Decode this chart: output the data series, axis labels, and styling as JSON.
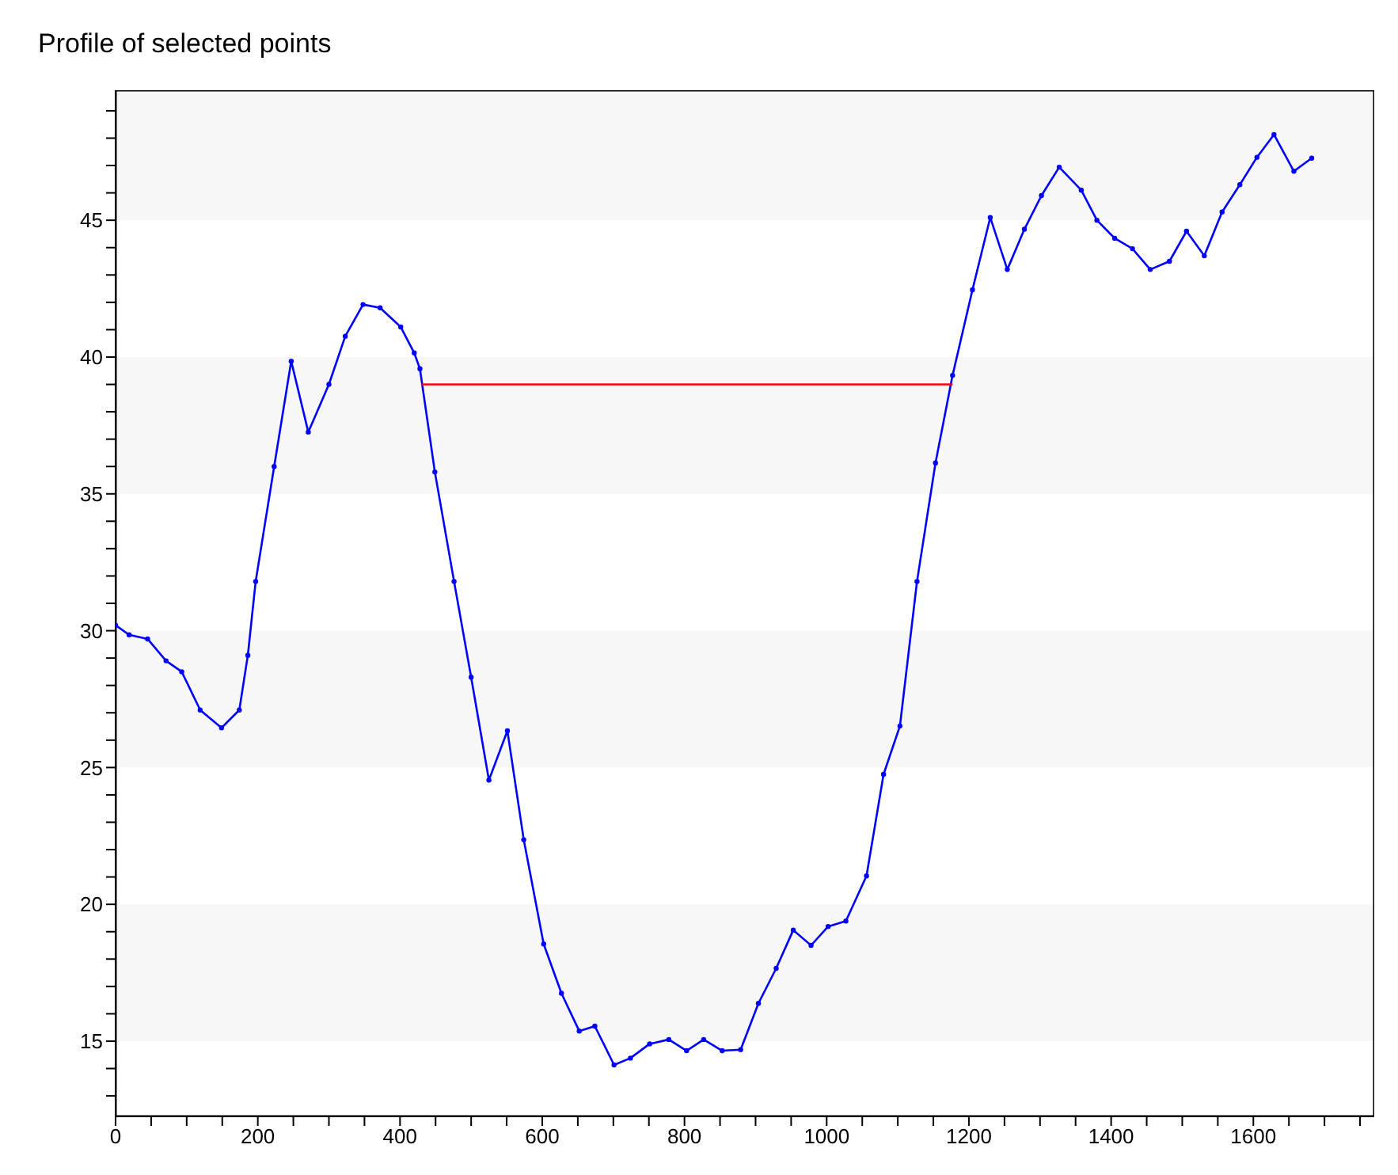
{
  "chart_data": {
    "type": "line",
    "title": "Profile of selected points",
    "xlim": [
      0,
      1770
    ],
    "ylim": [
      12.25,
      49.75
    ],
    "xticks": [
      0,
      {
        "value": 50,
        "label": null
      },
      {
        "value": 100,
        "label": null
      },
      {
        "value": 150,
        "label": null
      },
      200,
      {
        "value": 250,
        "label": null
      },
      {
        "value": 300,
        "label": null
      },
      {
        "value": 350,
        "label": null
      },
      400,
      {
        "value": 450,
        "label": null
      },
      {
        "value": 500,
        "label": null
      },
      {
        "value": 550,
        "label": null
      },
      600,
      {
        "value": 650,
        "label": null
      },
      {
        "value": 700,
        "label": null
      },
      {
        "value": 750,
        "label": null
      },
      800,
      {
        "value": 850,
        "label": null
      },
      {
        "value": 900,
        "label": null
      },
      {
        "value": 950,
        "label": null
      },
      1000,
      {
        "value": 1050,
        "label": null
      },
      {
        "value": 1100,
        "label": null
      },
      {
        "value": 1150,
        "label": null
      },
      1200,
      {
        "value": 1250,
        "label": null
      },
      {
        "value": 1300,
        "label": null
      },
      {
        "value": 1350,
        "label": null
      },
      1400,
      {
        "value": 1450,
        "label": null
      },
      {
        "value": 1500,
        "label": null
      },
      {
        "value": 1550,
        "label": null
      },
      1600,
      {
        "value": 1650,
        "label": null
      },
      {
        "value": 1700,
        "label": null
      },
      {
        "value": 1750,
        "label": null
      }
    ],
    "yticks": [
      {
        "value": 13,
        "label": null
      },
      {
        "value": 14,
        "label": null
      },
      15,
      {
        "value": 16,
        "label": null
      },
      {
        "value": 17,
        "label": null
      },
      {
        "value": 18,
        "label": null
      },
      {
        "value": 19,
        "label": null
      },
      20,
      {
        "value": 21,
        "label": null
      },
      {
        "value": 22,
        "label": null
      },
      {
        "value": 23,
        "label": null
      },
      {
        "value": 24,
        "label": null
      },
      25,
      {
        "value": 26,
        "label": null
      },
      {
        "value": 27,
        "label": null
      },
      {
        "value": 28,
        "label": null
      },
      {
        "value": 29,
        "label": null
      },
      30,
      {
        "value": 31,
        "label": null
      },
      {
        "value": 32,
        "label": null
      },
      {
        "value": 33,
        "label": null
      },
      {
        "value": 34,
        "label": null
      },
      35,
      {
        "value": 36,
        "label": null
      },
      {
        "value": 37,
        "label": null
      },
      {
        "value": 38,
        "label": null
      },
      {
        "value": 39,
        "label": null
      },
      40,
      {
        "value": 41,
        "label": null
      },
      {
        "value": 42,
        "label": null
      },
      {
        "value": 43,
        "label": null
      },
      {
        "value": 44,
        "label": null
      },
      45,
      {
        "value": 46,
        "label": null
      },
      {
        "value": 47,
        "label": null
      },
      {
        "value": 48,
        "label": null
      },
      {
        "value": 49,
        "label": null
      }
    ],
    "bands": [
      {
        "axis": "y",
        "from": 15,
        "to": 20,
        "color": "#f7f7f7"
      },
      {
        "axis": "y",
        "from": 25,
        "to": 30,
        "color": "#f7f7f7"
      },
      {
        "axis": "y",
        "from": 35,
        "to": 40,
        "color": "#f7f7f7"
      },
      {
        "axis": "y",
        "from": 45,
        "to": 49.75,
        "color": "#f7f7f7"
      }
    ],
    "marker": "circle",
    "line_style": "solid",
    "series": [
      {
        "color": "#0000ff",
        "x": [
          0,
          19,
          45,
          71,
          93,
          119,
          149,
          174,
          186,
          197,
          223,
          247,
          271,
          300,
          323,
          348,
          372,
          401,
          420,
          428,
          449,
          476,
          500,
          525,
          551,
          574,
          602,
          627,
          652,
          674,
          701,
          724,
          751,
          778,
          803,
          827,
          853,
          879,
          904,
          929,
          953,
          978,
          1002,
          1027,
          1056,
          1080,
          1103,
          1127,
          1153,
          1177,
          1205,
          1230,
          1254,
          1278,
          1302,
          1327,
          1358,
          1380,
          1405,
          1430,
          1455,
          1482,
          1506,
          1531,
          1556,
          1581,
          1605,
          1629,
          1657,
          1682
        ],
        "values": [
          30.2,
          29.85,
          29.7,
          28.9,
          28.5,
          27.1,
          26.45,
          27.1,
          29.1,
          31.8,
          36.0,
          39.85,
          37.26,
          39.0,
          40.76,
          41.92,
          41.8,
          41.1,
          40.15,
          39.57,
          35.8,
          31.8,
          28.3,
          24.54,
          26.34,
          22.36,
          18.55,
          16.75,
          15.37,
          15.55,
          14.13,
          14.38,
          14.9,
          15.06,
          14.65,
          15.06,
          14.65,
          14.69,
          16.38,
          17.66,
          19.06,
          18.5,
          19.19,
          19.39,
          21.04,
          24.75,
          26.52,
          31.8,
          36.13,
          39.33,
          42.46,
          45.1,
          43.2,
          44.67,
          45.9,
          46.94,
          46.1,
          45.0,
          44.34,
          43.96,
          43.2,
          43.5,
          44.6,
          43.7,
          45.3,
          46.3,
          47.3,
          48.13,
          46.79,
          47.27
        ]
      },
      {
        "color": "#ff0000",
        "marker": "none",
        "x": [
          430,
          1177
        ],
        "values": [
          39,
          39
        ]
      }
    ]
  }
}
